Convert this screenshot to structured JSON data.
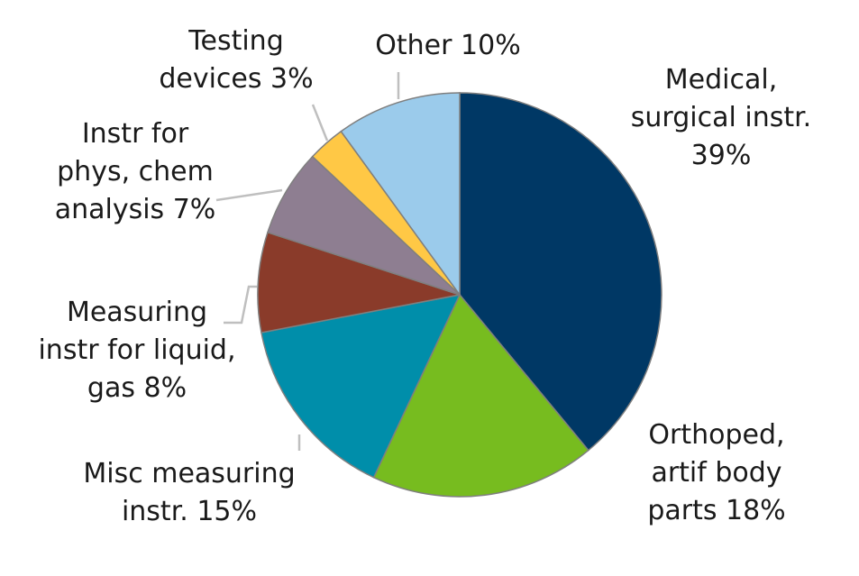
{
  "chart_data": {
    "type": "pie",
    "title": "",
    "slices": [
      {
        "label_lines": [
          "Medical,",
          "surgical instr.",
          "39%"
        ],
        "value": 39,
        "color": "#003865"
      },
      {
        "label_lines": [
          "Orthoped,",
          "artif body",
          "parts 18%"
        ],
        "value": 18,
        "color": "#77BC1F"
      },
      {
        "label_lines": [
          "Misc measuring",
          "instr. 15%"
        ],
        "value": 15,
        "color": "#008EAA"
      },
      {
        "label_lines": [
          "Measuring",
          "instr for liquid,",
          "gas 8%"
        ],
        "value": 8,
        "color": "#8A3B2A"
      },
      {
        "label_lines": [
          "Instr for",
          "phys, chem",
          "analysis 7%"
        ],
        "value": 7,
        "color": "#8E7E91"
      },
      {
        "label_lines": [
          "Testing",
          "devices 3%"
        ],
        "value": 3,
        "color": "#FFC845"
      },
      {
        "label_lines": [
          "Other 10%"
        ],
        "value": 10,
        "color": "#9BCBEB"
      }
    ]
  }
}
